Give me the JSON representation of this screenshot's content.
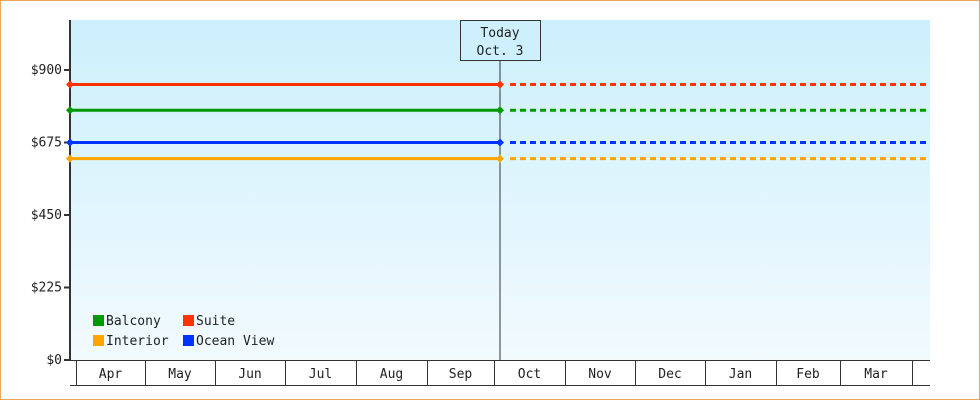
{
  "chart_data": {
    "type": "line",
    "ylim": [
      0,
      1000
    ],
    "y_ticks": [
      "$0",
      "$225",
      "$450",
      "$675",
      "$900"
    ],
    "y_tick_values": [
      0,
      225,
      450,
      675,
      900
    ],
    "x_categories": [
      "Apr",
      "May",
      "Jun",
      "Jul",
      "Aug",
      "Sep",
      "Oct",
      "Nov",
      "Dec",
      "Jan",
      "Feb",
      "Mar"
    ],
    "today_marker": {
      "line1": "Today",
      "line2": "Oct. 3"
    },
    "series": [
      {
        "name": "Suite",
        "color": "#ff3300",
        "value": 855
      },
      {
        "name": "Balcony",
        "color": "#009900",
        "value": 775
      },
      {
        "name": "Ocean View",
        "color": "#0033ff",
        "value": 675
      },
      {
        "name": "Interior",
        "color": "#ffa500",
        "value": 625
      }
    ],
    "line_style": {
      "past": "solid",
      "future": "dashed"
    },
    "legend": {
      "position": "bottom-left",
      "order": [
        "Balcony",
        "Suite",
        "Interior",
        "Ocean View"
      ]
    },
    "background_gradient": [
      "#ccf0fc",
      "#f2fafe"
    ]
  }
}
